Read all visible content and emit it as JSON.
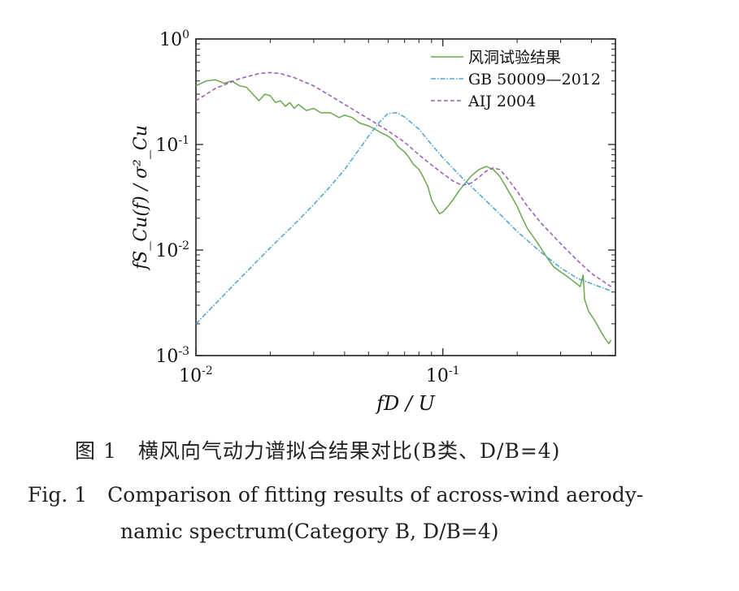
{
  "chart_data": {
    "type": "line",
    "scale": {
      "x": "log",
      "y": "log"
    },
    "xlim": [
      0.01,
      0.5
    ],
    "ylim": [
      0.001,
      1
    ],
    "xlabel": "fD / U",
    "ylabel": "fS_Cu(f) / σ²_Cu",
    "x_ticks": [
      {
        "value": 0.01,
        "base": "10",
        "exp": "-2"
      },
      {
        "value": 0.1,
        "base": "10",
        "exp": "-1"
      }
    ],
    "y_ticks": [
      {
        "value": 1,
        "base": "10",
        "exp": "0"
      },
      {
        "value": 0.1,
        "base": "10",
        "exp": "-1"
      },
      {
        "value": 0.01,
        "base": "10",
        "exp": "-2"
      },
      {
        "value": 0.001,
        "base": "10",
        "exp": "-3"
      }
    ],
    "legend_position": "top-right",
    "series": [
      {
        "name": "风洞试验结果",
        "color": "#6aa84f",
        "dash": "solid",
        "points": [
          [
            0.01,
            0.36
          ],
          [
            0.011,
            0.4
          ],
          [
            0.012,
            0.41
          ],
          [
            0.013,
            0.38
          ],
          [
            0.014,
            0.4
          ],
          [
            0.015,
            0.36
          ],
          [
            0.016,
            0.35
          ],
          [
            0.017,
            0.3
          ],
          [
            0.018,
            0.26
          ],
          [
            0.019,
            0.3
          ],
          [
            0.02,
            0.29
          ],
          [
            0.021,
            0.25
          ],
          [
            0.022,
            0.26
          ],
          [
            0.023,
            0.23
          ],
          [
            0.024,
            0.25
          ],
          [
            0.025,
            0.22
          ],
          [
            0.026,
            0.24
          ],
          [
            0.028,
            0.21
          ],
          [
            0.03,
            0.22
          ],
          [
            0.032,
            0.2
          ],
          [
            0.035,
            0.2
          ],
          [
            0.038,
            0.18
          ],
          [
            0.04,
            0.19
          ],
          [
            0.043,
            0.18
          ],
          [
            0.046,
            0.16
          ],
          [
            0.05,
            0.15
          ],
          [
            0.053,
            0.14
          ],
          [
            0.056,
            0.13
          ],
          [
            0.06,
            0.12
          ],
          [
            0.063,
            0.11
          ],
          [
            0.066,
            0.095
          ],
          [
            0.07,
            0.085
          ],
          [
            0.073,
            0.075
          ],
          [
            0.076,
            0.065
          ],
          [
            0.08,
            0.058
          ],
          [
            0.083,
            0.05
          ],
          [
            0.087,
            0.04
          ],
          [
            0.09,
            0.03
          ],
          [
            0.093,
            0.026
          ],
          [
            0.097,
            0.022
          ],
          [
            0.1,
            0.023
          ],
          [
            0.105,
            0.026
          ],
          [
            0.11,
            0.03
          ],
          [
            0.115,
            0.035
          ],
          [
            0.12,
            0.04
          ],
          [
            0.13,
            0.05
          ],
          [
            0.14,
            0.058
          ],
          [
            0.15,
            0.062
          ],
          [
            0.16,
            0.058
          ],
          [
            0.17,
            0.05
          ],
          [
            0.18,
            0.04
          ],
          [
            0.19,
            0.032
          ],
          [
            0.2,
            0.026
          ],
          [
            0.21,
            0.02
          ],
          [
            0.22,
            0.016
          ],
          [
            0.24,
            0.012
          ],
          [
            0.26,
            0.009
          ],
          [
            0.28,
            0.007
          ],
          [
            0.3,
            0.0062
          ],
          [
            0.32,
            0.0056
          ],
          [
            0.34,
            0.005
          ],
          [
            0.36,
            0.0045
          ],
          [
            0.37,
            0.0058
          ],
          [
            0.375,
            0.0034
          ],
          [
            0.39,
            0.0026
          ],
          [
            0.41,
            0.0022
          ],
          [
            0.43,
            0.0018
          ],
          [
            0.45,
            0.0015
          ],
          [
            0.47,
            0.0013
          ],
          [
            0.48,
            0.0014
          ]
        ]
      },
      {
        "name": "GB 50009—2012",
        "color": "#4aa3d8",
        "dash": "dashdot",
        "points": [
          [
            0.01,
            0.002
          ],
          [
            0.012,
            0.0031
          ],
          [
            0.015,
            0.0053
          ],
          [
            0.02,
            0.0105
          ],
          [
            0.025,
            0.0175
          ],
          [
            0.03,
            0.027
          ],
          [
            0.035,
            0.04
          ],
          [
            0.04,
            0.058
          ],
          [
            0.045,
            0.085
          ],
          [
            0.05,
            0.12
          ],
          [
            0.055,
            0.16
          ],
          [
            0.06,
            0.197
          ],
          [
            0.065,
            0.2
          ],
          [
            0.07,
            0.182
          ],
          [
            0.08,
            0.14
          ],
          [
            0.09,
            0.1
          ],
          [
            0.1,
            0.075
          ],
          [
            0.12,
            0.048
          ],
          [
            0.14,
            0.034
          ],
          [
            0.17,
            0.022
          ],
          [
            0.2,
            0.015
          ],
          [
            0.25,
            0.0095
          ],
          [
            0.3,
            0.0068
          ],
          [
            0.35,
            0.0054
          ],
          [
            0.4,
            0.0048
          ],
          [
            0.48,
            0.0041
          ]
        ]
      },
      {
        "name": "AIJ 2004",
        "color": "#9b59b6",
        "dash": "dashed",
        "points": [
          [
            0.01,
            0.26
          ],
          [
            0.012,
            0.34
          ],
          [
            0.015,
            0.42
          ],
          [
            0.018,
            0.47
          ],
          [
            0.02,
            0.48
          ],
          [
            0.022,
            0.47
          ],
          [
            0.025,
            0.43
          ],
          [
            0.03,
            0.36
          ],
          [
            0.035,
            0.29
          ],
          [
            0.04,
            0.24
          ],
          [
            0.05,
            0.175
          ],
          [
            0.06,
            0.135
          ],
          [
            0.07,
            0.105
          ],
          [
            0.08,
            0.08
          ],
          [
            0.09,
            0.064
          ],
          [
            0.1,
            0.053
          ],
          [
            0.11,
            0.045
          ],
          [
            0.12,
            0.041
          ],
          [
            0.13,
            0.043
          ],
          [
            0.14,
            0.049
          ],
          [
            0.15,
            0.056
          ],
          [
            0.16,
            0.06
          ],
          [
            0.17,
            0.058
          ],
          [
            0.18,
            0.05
          ],
          [
            0.2,
            0.036
          ],
          [
            0.22,
            0.026
          ],
          [
            0.25,
            0.018
          ],
          [
            0.3,
            0.0115
          ],
          [
            0.35,
            0.008
          ],
          [
            0.4,
            0.006
          ],
          [
            0.48,
            0.0045
          ]
        ]
      }
    ]
  },
  "caption": {
    "zh": "图 1　横风向气动力谱拟合结果对比(B类、D/B=4)",
    "en_line1": "Fig. 1　Comparison of fitting results of across-wind aerody-",
    "en_line2": "namic spectrum(Category B, D/B=4)"
  }
}
